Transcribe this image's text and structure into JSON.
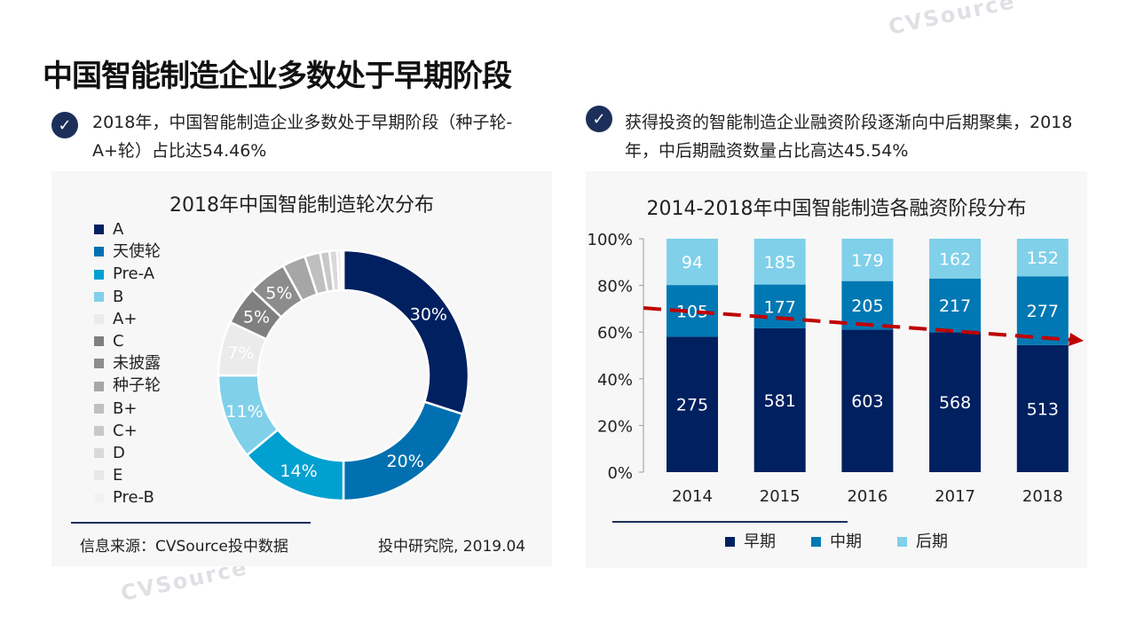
{
  "title": "中国智能制造企业多数处于早期阶段",
  "bullets": [
    {
      "icon": "check-circle-icon",
      "text": "2018年，中国智能制造企业多数处于早期阶段（种子轮-A+轮）占比达54.46%"
    },
    {
      "icon": "check-circle-icon",
      "text": "获得投资的智能制造企业融资阶段逐渐向中后期聚集，2018年，中后期融资数量占比高达45.54%"
    }
  ],
  "watermark": "CVSource 投中数据",
  "footer": {
    "source": "信息来源：CVSource投中数据",
    "org": "投中研究院, 2019.04"
  },
  "chart_data": [
    {
      "type": "pie",
      "variant": "donut",
      "title": "2018年中国智能制造轮次分布",
      "legend_position": "left",
      "categories": [
        "A",
        "天使轮",
        "Pre-A",
        "B",
        "A+",
        "C",
        "未披露",
        "种子轮",
        "B+",
        "C+",
        "D",
        "E",
        "Pre-B"
      ],
      "values": [
        30,
        20,
        14,
        11,
        7,
        5,
        5,
        3,
        2,
        1.2,
        1,
        0.5,
        0.3
      ],
      "labels": [
        "30%",
        "20%",
        "14%",
        "11%",
        "7%",
        "5%",
        "5%",
        "",
        "",
        "",
        "",
        "",
        ""
      ],
      "colors": [
        "#002060",
        "#0070b0",
        "#00a0d0",
        "#80d0ea",
        "#ebebeb",
        "#7f7f7f",
        "#8c8c8c",
        "#a6a6a6",
        "#bfbfbf",
        "#c8c8c8",
        "#d9d9d9",
        "#e8e8e8",
        "#f2f2f2"
      ]
    },
    {
      "type": "bar",
      "stacked": "percent",
      "title": "2014-2018年中国智能制造各融资阶段分布",
      "categories": [
        "2014",
        "2015",
        "2016",
        "2017",
        "2018"
      ],
      "yticks": [
        "0%",
        "20%",
        "40%",
        "60%",
        "80%",
        "100%"
      ],
      "ylim": [
        0,
        100
      ],
      "legend_position": "bottom",
      "series": [
        {
          "name": "早期",
          "values": [
            275,
            581,
            603,
            568,
            513
          ],
          "color": "#002060"
        },
        {
          "name": "中期",
          "values": [
            105,
            177,
            205,
            217,
            277
          ],
          "color": "#0078b4"
        },
        {
          "name": "后期",
          "values": [
            94,
            185,
            179,
            162,
            152
          ],
          "color": "#80d0ea"
        }
      ],
      "annotation": {
        "type": "trend-arrow",
        "direction": "decreasing",
        "color": "#c00000"
      }
    }
  ]
}
